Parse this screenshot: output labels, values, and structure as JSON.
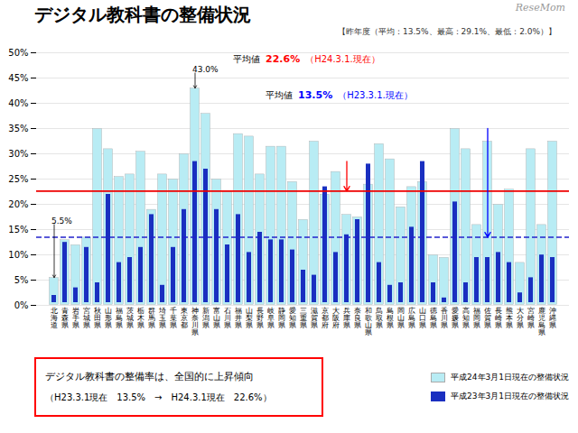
{
  "chart_data": {
    "type": "bar",
    "title": "デジタル教科書の整備状況",
    "subtitle": "【昨年度（平均：13.5%、最高：29.1%、最低：2.0%）】",
    "source": "ReseMom",
    "categories": [
      "北海道",
      "青森県",
      "岩手県",
      "宮城県",
      "秋田県",
      "山形県",
      "福島県",
      "茨城県",
      "栃木県",
      "群馬県",
      "埼玉県",
      "千葉県",
      "東京都",
      "神奈川県",
      "新潟県",
      "富山県",
      "石川県",
      "福井県",
      "山梨県",
      "長野県",
      "岐阜県",
      "静岡県",
      "愛知県",
      "三重県",
      "滋賀県",
      "京都府",
      "大阪府",
      "兵庫県",
      "奈良県",
      "和歌山県",
      "鳥取県",
      "島根県",
      "岡山県",
      "広島県",
      "山口県",
      "徳島県",
      "香川県",
      "愛媛県",
      "高知県",
      "福岡県",
      "佐賀県",
      "長崎県",
      "熊本県",
      "大分県",
      "宮崎県",
      "鹿児島県",
      "沖縄県"
    ],
    "series": [
      {
        "name": "平成24年3月1日現在の整備状況",
        "color": "#b8ecf4",
        "values": [
          5.5,
          13.0,
          12.0,
          13.5,
          35.0,
          31.0,
          25.5,
          26.0,
          30.5,
          19.0,
          26.0,
          25.0,
          30.0,
          43.0,
          38.0,
          25.0,
          22.5,
          34.0,
          33.5,
          26.0,
          31.5,
          31.5,
          24.5,
          17.0,
          32.5,
          22.0,
          26.5,
          18.0,
          17.5,
          24.0,
          32.0,
          29.0,
          19.5,
          23.5,
          24.5,
          10.0,
          9.5,
          35.0,
          31.0,
          16.0,
          32.5,
          20.0,
          23.0,
          8.5,
          31.0,
          16.0,
          32.5
        ]
      },
      {
        "name": "平成23年3月1日現在の整備状況",
        "color": "#1a2fc0",
        "values": [
          2.5,
          13.0,
          4.0,
          12.0,
          5.0,
          22.5,
          9.0,
          10.0,
          12.0,
          18.5,
          4.5,
          12.0,
          19.5,
          29.0,
          27.5,
          19.5,
          12.5,
          18.5,
          11.0,
          15.0,
          13.5,
          13.5,
          11.5,
          7.5,
          6.5,
          24.0,
          11.0,
          14.5,
          17.5,
          28.5,
          9.0,
          4.5,
          5.0,
          16.0,
          29.0,
          5.0,
          2.0,
          21.0,
          5.0,
          10.0,
          10.0,
          11.0,
          9.0,
          3.0,
          6.0,
          10.5,
          10.0
        ]
      }
    ],
    "ylim": [
      0,
      50
    ],
    "yticks": [
      {
        "value": 0,
        "label": "0%"
      },
      {
        "value": 5,
        "label": "5%"
      },
      {
        "value": 10,
        "label": "10%"
      },
      {
        "value": 15,
        "label": "15%"
      },
      {
        "value": 20,
        "label": "20%"
      },
      {
        "value": 25,
        "label": "25%"
      },
      {
        "value": 30,
        "label": "30%"
      },
      {
        "value": 35,
        "label": "35%"
      },
      {
        "value": 40,
        "label": "40%"
      },
      {
        "value": 45,
        "label": "45%"
      },
      {
        "value": 50,
        "label": "50%"
      }
    ],
    "grid": true,
    "legend": "lower right",
    "reference_lines": [
      {
        "y": 22.6,
        "color": "#ee0000",
        "line_style": "solid",
        "label": "平均値",
        "value_label": "22.6%",
        "note": "（H24.3.1.現在）",
        "label_color": "red",
        "arrow": {
          "x": "兵庫県",
          "from": 28.5
        }
      },
      {
        "y": 13.5,
        "color": "#2222cc",
        "line_style": "dashed",
        "label": "平均値",
        "value_label": "13.5%",
        "note": "（H23.3.1.現在）",
        "label_color": "blue",
        "arrow": {
          "x": "佐賀県",
          "from": 35.0
        }
      }
    ],
    "annotations": [
      {
        "text": "43.0%",
        "x": "神奈川県",
        "y": 43.0
      },
      {
        "text": "5.5%",
        "x": "北海道",
        "y": 5.5
      }
    ],
    "caption": [
      "デジタル教科書の整備率は、全国的に上昇傾向",
      "（H23.3.1現在　13.5%　→　H24.3.1現在　22.6%）"
    ]
  }
}
